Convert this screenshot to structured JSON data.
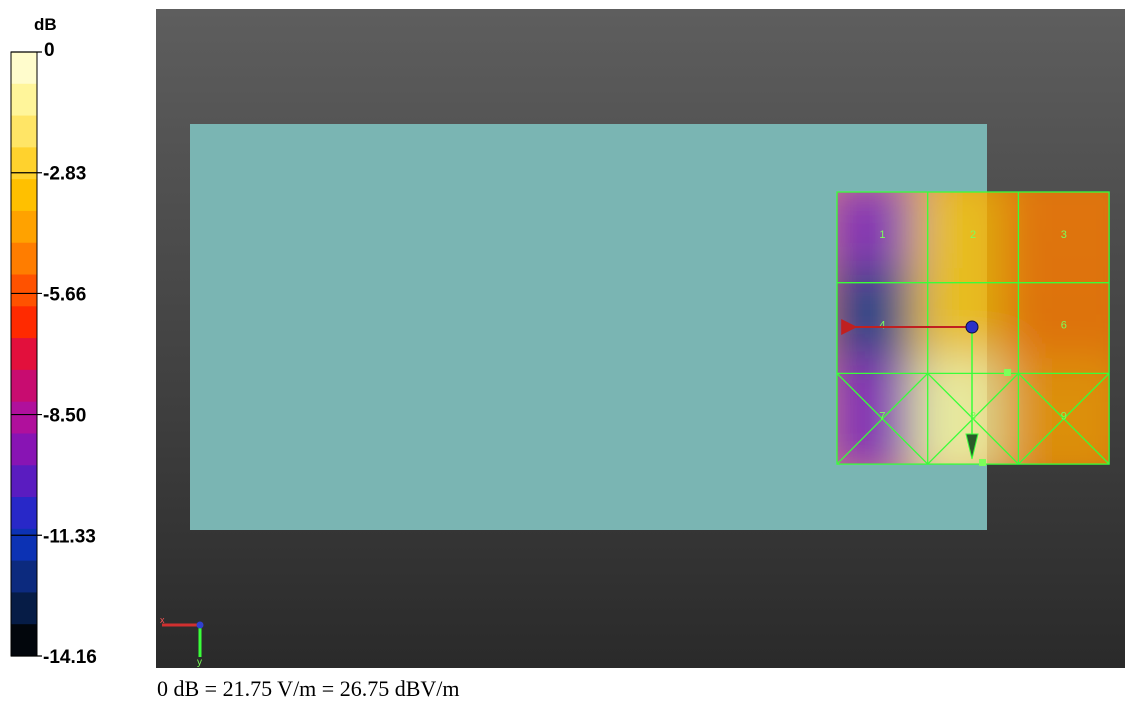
{
  "chart_data": {
    "type": "heatmap",
    "colorbar": {
      "unit": "dB",
      "range": [
        -14.16,
        0
      ],
      "tick_labels": [
        "0",
        "-2.83",
        "-5.66",
        "-8.50",
        "-11.33",
        "-14.16"
      ],
      "tick_values": [
        0,
        -2.83,
        -5.66,
        -8.5,
        -11.33,
        -14.16
      ],
      "colors": [
        "#fffccc",
        "#fff59a",
        "#ffe566",
        "#ffd22d",
        "#ffc000",
        "#ffa200",
        "#ff7d00",
        "#ff5200",
        "#ff2a00",
        "#e2103c",
        "#c80c70",
        "#b0109c",
        "#8814b4",
        "#5a1cc0",
        "#2828c8",
        "#0c32b4",
        "#0c2a7e",
        "#061c46",
        "#02060c"
      ]
    },
    "grid": {
      "cells": [
        {
          "label": "1",
          "value": -9.5
        },
        {
          "label": "2",
          "value": -3.5
        },
        {
          "label": "3",
          "value": -5.0
        },
        {
          "label": "4",
          "value": -12.5
        },
        {
          "label": "5",
          "value": -3.0
        },
        {
          "label": "6",
          "value": -4.5
        },
        {
          "label": "7",
          "value": -9.0
        },
        {
          "label": "8",
          "value": -1.0
        },
        {
          "label": "9",
          "value": -4.0
        }
      ]
    },
    "axes_triad": {
      "x": "x",
      "y": "y"
    },
    "caption": "0 dB = 21.75 V/m = 26.75 dBV/m"
  }
}
